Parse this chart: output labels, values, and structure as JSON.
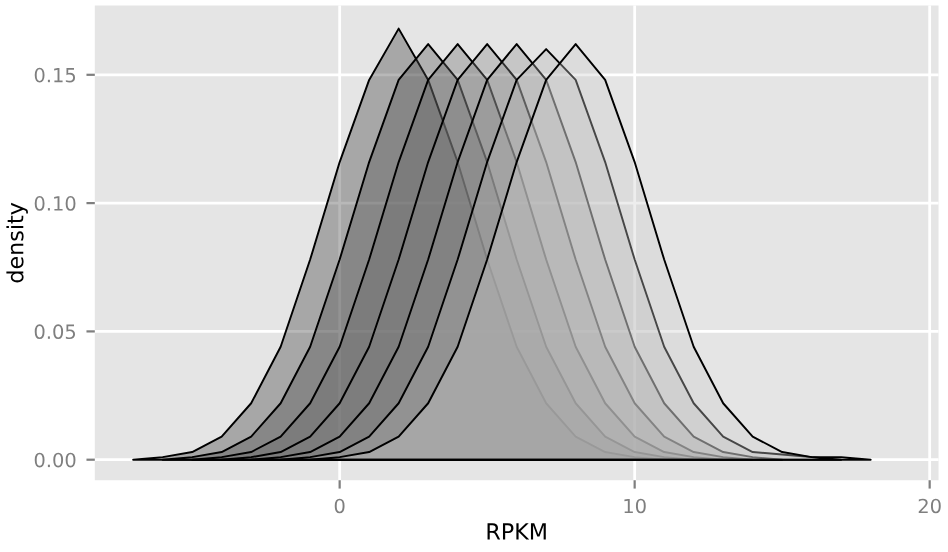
{
  "chart_data": {
    "type": "area",
    "xlabel": "RPKM",
    "ylabel": "density",
    "series": [
      {
        "color": "#333333",
        "x": [
          -7,
          -6,
          -5,
          -4,
          -3,
          -2,
          -1,
          0,
          1,
          2,
          3,
          4,
          5,
          6,
          7,
          8,
          9,
          10,
          11
        ],
        "values": [
          0,
          0.001,
          0.003,
          0.009,
          0.022,
          0.044,
          0.078,
          0.116,
          0.148,
          0.168,
          0.148,
          0.116,
          0.078,
          0.044,
          0.022,
          0.009,
          0.003,
          0.001,
          0
        ]
      },
      {
        "color": "#4d4d4d",
        "x": [
          -6,
          -5,
          -4,
          -3,
          -2,
          -1,
          0,
          1,
          2,
          3,
          4,
          5,
          6,
          7,
          8,
          9,
          10,
          11,
          12
        ],
        "values": [
          0,
          0.001,
          0.003,
          0.009,
          0.022,
          0.044,
          0.078,
          0.116,
          0.148,
          0.162,
          0.148,
          0.116,
          0.078,
          0.044,
          0.022,
          0.009,
          0.003,
          0.001,
          0
        ]
      },
      {
        "color": "#666666",
        "x": [
          -5,
          -4,
          -3,
          -2,
          -1,
          0,
          1,
          2,
          3,
          4,
          5,
          6,
          7,
          8,
          9,
          10,
          11,
          12,
          13
        ],
        "values": [
          0,
          0.001,
          0.003,
          0.009,
          0.022,
          0.044,
          0.078,
          0.116,
          0.148,
          0.162,
          0.148,
          0.116,
          0.078,
          0.044,
          0.022,
          0.009,
          0.003,
          0.001,
          0
        ]
      },
      {
        "color": "#808080",
        "x": [
          -4,
          -3,
          -2,
          -1,
          0,
          1,
          2,
          3,
          4,
          5,
          6,
          7,
          8,
          9,
          10,
          11,
          12,
          13,
          14
        ],
        "values": [
          0,
          0.001,
          0.003,
          0.009,
          0.022,
          0.044,
          0.078,
          0.116,
          0.148,
          0.162,
          0.148,
          0.116,
          0.078,
          0.044,
          0.022,
          0.009,
          0.003,
          0.001,
          0
        ]
      },
      {
        "color": "#8c8c8c",
        "x": [
          -3,
          -2,
          -1,
          0,
          1,
          2,
          3,
          4,
          5,
          6,
          7,
          8,
          9,
          10,
          11,
          12,
          13,
          14,
          15
        ],
        "values": [
          0,
          0.001,
          0.003,
          0.009,
          0.022,
          0.044,
          0.078,
          0.116,
          0.148,
          0.162,
          0.148,
          0.116,
          0.078,
          0.044,
          0.022,
          0.009,
          0.003,
          0.001,
          0
        ]
      },
      {
        "color": "#b3b3b3",
        "x": [
          -2,
          -1,
          0,
          1,
          2,
          3,
          4,
          5,
          6,
          7,
          8,
          9,
          10,
          11,
          12,
          13,
          14,
          15,
          16,
          17,
          18
        ],
        "values": [
          0,
          0.001,
          0.003,
          0.009,
          0.022,
          0.044,
          0.078,
          0.116,
          0.148,
          0.16,
          0.148,
          0.116,
          0.078,
          0.044,
          0.022,
          0.009,
          0.003,
          0.002,
          0.001,
          0.001,
          0
        ]
      },
      {
        "color": "#cccccc",
        "x": [
          -1,
          0,
          1,
          2,
          3,
          4,
          5,
          6,
          7,
          8,
          9,
          10,
          11,
          12,
          13,
          14,
          15,
          16,
          17
        ],
        "values": [
          0,
          0.001,
          0.003,
          0.009,
          0.022,
          0.044,
          0.078,
          0.116,
          0.148,
          0.162,
          0.148,
          0.116,
          0.078,
          0.044,
          0.022,
          0.009,
          0.003,
          0.001,
          0
        ]
      }
    ],
    "xlim": [
      -8.3,
      20.3
    ],
    "ylim": [
      -0.008,
      0.177
    ],
    "xticks": [
      0,
      10,
      20
    ],
    "yticks": [
      {
        "value": 0,
        "label": "0.00"
      },
      {
        "value": 0.05,
        "label": "0.05"
      },
      {
        "value": 0.1,
        "label": "0.10"
      },
      {
        "value": 0.15,
        "label": "0.15"
      }
    ],
    "grid": true
  }
}
